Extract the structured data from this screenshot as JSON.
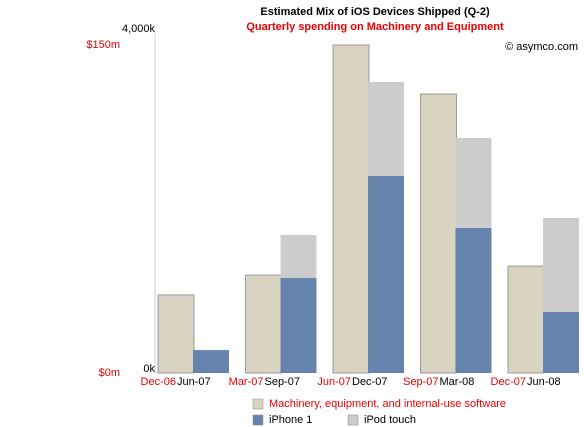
{
  "chart_data": {
    "type": "bar",
    "title": "Estimated Mix of iOS Devices Shipped (Q-2)",
    "subtitle": "Quarterly spending on Machinery and Equipment",
    "annotation": "© asymco.com",
    "spend_categories": [
      "Dec-06",
      "Mar-07",
      "Jun-07",
      "Sep-07",
      "Dec-07"
    ],
    "categories": [
      "Jun-07",
      "Sep-07",
      "Dec-07",
      "Mar-08",
      "Jun-08"
    ],
    "series": [
      {
        "name": "Machinery, equipment, and internal-use software",
        "color": "#d9d3c1",
        "axis": "y",
        "values": [
          35.7,
          44.8,
          150,
          127.6,
          48.9
        ]
      },
      {
        "name": "iPhone 1",
        "color": "#6583ad",
        "axis": "y2",
        "values": [
          270,
          1118,
          2318,
          1706,
          718
        ]
      },
      {
        "name": "iPod touch",
        "color": "#cccccc",
        "axis": "y2",
        "values": [
          null,
          506,
          1106,
          1059,
          1106
        ]
      }
    ],
    "ylim": [
      0,
      150
    ],
    "yticks": [
      {
        "value": 0,
        "label": "$0m"
      },
      {
        "value": 150,
        "label": "$150m"
      }
    ],
    "y2lim": [
      0,
      4000
    ],
    "y2ticks": [
      {
        "value": 0,
        "label": "0k"
      },
      {
        "value": 4000,
        "label": "4,000k"
      }
    ],
    "stacked": true
  }
}
